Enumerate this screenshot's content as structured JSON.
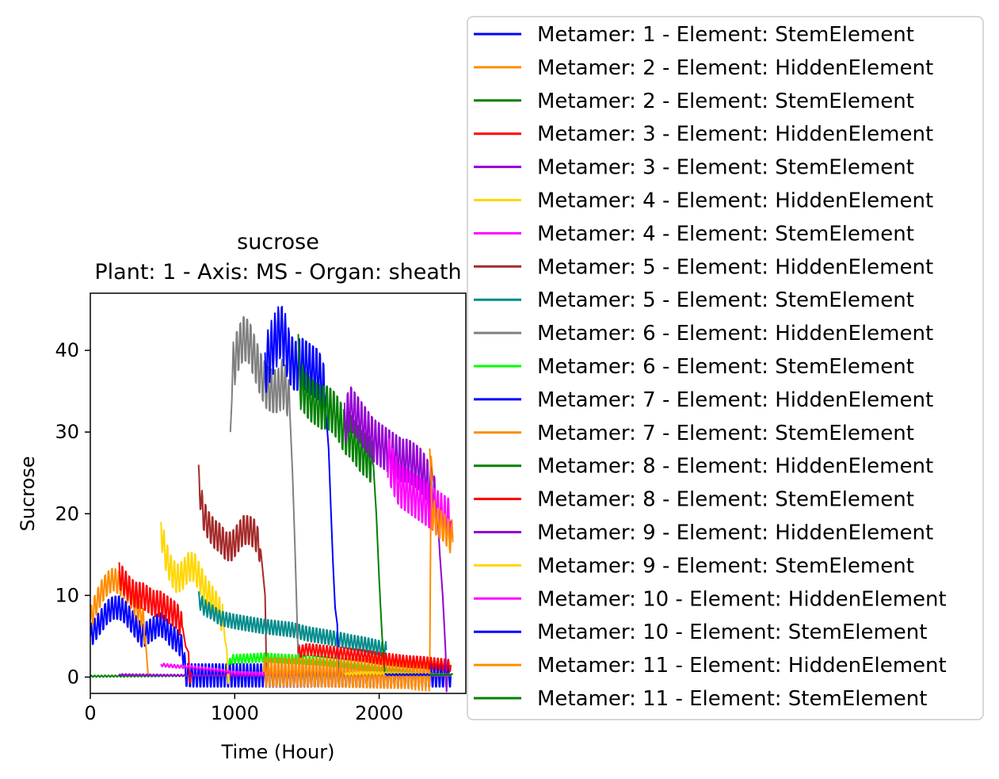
{
  "chart_data": {
    "type": "line",
    "title": "sucrose",
    "subtitle": "Plant: 1 - Axis: MS - Organ: sheath",
    "xlabel": "Time (Hour)",
    "ylabel": "Sucrose",
    "xlim": [
      0,
      2600
    ],
    "ylim": [
      -2,
      47
    ],
    "xticks": [
      0,
      1000,
      2000
    ],
    "yticks": [
      0,
      10,
      20,
      30,
      40
    ],
    "xtick_labels": [
      "0",
      "1000",
      "2000"
    ],
    "ytick_labels": [
      "0",
      "10",
      "20",
      "30",
      "40"
    ],
    "grid": false,
    "legend_position": "outside-right",
    "series": [
      {
        "name": "Metamer: 1 - Element: StemElement",
        "color": "#0000ff",
        "points": [
          [
            0,
            5
          ],
          [
            20,
            5.5
          ],
          [
            40,
            6
          ],
          [
            80,
            7
          ],
          [
            120,
            8
          ],
          [
            160,
            8.5
          ],
          [
            200,
            8.5
          ],
          [
            240,
            8
          ],
          [
            280,
            7
          ],
          [
            320,
            6
          ],
          [
            360,
            5
          ],
          [
            400,
            5.5
          ],
          [
            440,
            6
          ],
          [
            480,
            6.5
          ],
          [
            520,
            6
          ],
          [
            560,
            5
          ],
          [
            600,
            4.5
          ],
          [
            640,
            3.5
          ],
          [
            660,
            0.3
          ],
          [
            700,
            0.2
          ],
          [
            2500,
            0.2
          ]
        ],
        "amp": 1.6
      },
      {
        "name": "Metamer: 2 - Element: HiddenElement",
        "color": "#ff8c00",
        "points": [
          [
            0,
            7
          ],
          [
            40,
            9
          ],
          [
            80,
            10.5
          ],
          [
            120,
            11.5
          ],
          [
            160,
            12
          ],
          [
            200,
            11.5
          ],
          [
            240,
            11
          ],
          [
            280,
            10
          ],
          [
            320,
            8.5
          ],
          [
            360,
            7.5
          ],
          [
            380,
            5
          ],
          [
            400,
            0.3
          ]
        ],
        "amp": 1.6
      },
      {
        "name": "Metamer: 2 - Element: StemElement",
        "color": "#008000",
        "points": [
          [
            0,
            0.1
          ],
          [
            400,
            0.15
          ],
          [
            800,
            0.2
          ],
          [
            1200,
            0.2
          ],
          [
            1600,
            0.2
          ],
          [
            2000,
            0.2
          ],
          [
            2500,
            0.2
          ]
        ],
        "amp": 0.1
      },
      {
        "name": "Metamer: 3 - Element: HiddenElement",
        "color": "#ff0000",
        "points": [
          [
            200,
            12.5
          ],
          [
            240,
            11.5
          ],
          [
            280,
            10.5
          ],
          [
            320,
            10
          ],
          [
            360,
            10
          ],
          [
            400,
            9.5
          ],
          [
            440,
            9
          ],
          [
            480,
            9
          ],
          [
            520,
            8.5
          ],
          [
            560,
            8
          ],
          [
            600,
            7.5
          ],
          [
            640,
            6
          ],
          [
            680,
            1.5
          ],
          [
            700,
            0.3
          ]
        ],
        "amp": 1.8
      },
      {
        "name": "Metamer: 3 - Element: StemElement",
        "color": "#9400d3",
        "points": [
          [
            200,
            0.3
          ],
          [
            400,
            0.25
          ],
          [
            700,
            0.2
          ],
          [
            1000,
            0.2
          ],
          [
            1500,
            0.2
          ],
          [
            2000,
            0.2
          ],
          [
            2500,
            0.2
          ]
        ],
        "amp": 0.1
      },
      {
        "name": "Metamer: 4 - Element: HiddenElement",
        "color": "#ffd700",
        "points": [
          [
            490,
            18
          ],
          [
            520,
            15
          ],
          [
            560,
            13
          ],
          [
            600,
            12
          ],
          [
            640,
            12.5
          ],
          [
            680,
            13.5
          ],
          [
            720,
            13.5
          ],
          [
            760,
            12
          ],
          [
            800,
            10.5
          ],
          [
            840,
            9.5
          ],
          [
            880,
            8.5
          ],
          [
            920,
            7
          ],
          [
            945,
            2
          ],
          [
            960,
            0.5
          ]
        ],
        "amp": 2.0
      },
      {
        "name": "Metamer: 4 - Element: StemElement",
        "color": "#ff00ff",
        "points": [
          [
            490,
            1.5
          ],
          [
            600,
            1.3
          ],
          [
            700,
            1.2
          ],
          [
            800,
            1.0
          ],
          [
            900,
            0.8
          ],
          [
            1000,
            0.5
          ],
          [
            1200,
            0.4
          ],
          [
            1440,
            0.3
          ]
        ],
        "amp": 0.2
      },
      {
        "name": "Metamer: 5 - Element: HiddenElement",
        "color": "#a52a2a",
        "points": [
          [
            750,
            24
          ],
          [
            780,
            20
          ],
          [
            820,
            18.5
          ],
          [
            860,
            17.5
          ],
          [
            900,
            17
          ],
          [
            940,
            16
          ],
          [
            980,
            16
          ],
          [
            1020,
            17
          ],
          [
            1060,
            18
          ],
          [
            1100,
            18
          ],
          [
            1140,
            17.5
          ],
          [
            1180,
            15.5
          ],
          [
            1210,
            10
          ],
          [
            1220,
            1
          ],
          [
            1240,
            0.5
          ]
        ],
        "amp": 2.0
      },
      {
        "name": "Metamer: 5 - Element: StemElement",
        "color": "#008b8b",
        "points": [
          [
            750,
            9.5
          ],
          [
            790,
            8.5
          ],
          [
            840,
            8
          ],
          [
            900,
            7.2
          ],
          [
            1000,
            6.8
          ],
          [
            1100,
            6.5
          ],
          [
            1200,
            6.2
          ],
          [
            1300,
            6
          ],
          [
            1400,
            5.8
          ],
          [
            1500,
            5.3
          ],
          [
            1600,
            5
          ],
          [
            1700,
            4.7
          ],
          [
            1800,
            4.3
          ],
          [
            1900,
            4
          ],
          [
            2000,
            3.6
          ],
          [
            2050,
            3.3
          ]
        ],
        "amp": 1.0
      },
      {
        "name": "Metamer: 6 - Element: HiddenElement",
        "color": "#808080",
        "points": [
          [
            970,
            30
          ],
          [
            990,
            38
          ],
          [
            1020,
            40
          ],
          [
            1060,
            41.5
          ],
          [
            1100,
            41
          ],
          [
            1140,
            39
          ],
          [
            1180,
            37
          ],
          [
            1220,
            35.5
          ],
          [
            1260,
            35
          ],
          [
            1300,
            35
          ],
          [
            1330,
            36
          ],
          [
            1360,
            35
          ],
          [
            1380,
            33
          ],
          [
            1400,
            25
          ],
          [
            1420,
            14
          ],
          [
            1440,
            2
          ],
          [
            1450,
            0.5
          ]
        ],
        "amp": 3.0
      },
      {
        "name": "Metamer: 6 - Element: StemElement",
        "color": "#00ff00",
        "points": [
          [
            960,
            1.5
          ],
          [
            980,
            2.2
          ],
          [
            1100,
            2.3
          ],
          [
            1200,
            2.4
          ],
          [
            1300,
            2.3
          ],
          [
            1400,
            2.2
          ],
          [
            1500,
            2.1
          ],
          [
            1600,
            2
          ],
          [
            1700,
            1.8
          ],
          [
            1800,
            1.6
          ],
          [
            1900,
            1.4
          ],
          [
            2000,
            1.2
          ],
          [
            2100,
            1.0
          ],
          [
            2200,
            0.8
          ],
          [
            2250,
            0.6
          ]
        ],
        "amp": 0.6
      },
      {
        "name": "Metamer: 7 - Element: HiddenElement",
        "color": "#0000ff",
        "points": [
          [
            1210,
            38
          ],
          [
            1250,
            40
          ],
          [
            1290,
            41.5
          ],
          [
            1320,
            42.5
          ],
          [
            1350,
            41
          ],
          [
            1380,
            39
          ],
          [
            1420,
            38
          ],
          [
            1460,
            38.5
          ],
          [
            1500,
            38
          ],
          [
            1540,
            37.5
          ],
          [
            1580,
            37
          ],
          [
            1620,
            35
          ],
          [
            1650,
            28
          ],
          [
            1680,
            14
          ],
          [
            1710,
            3
          ],
          [
            1720,
            0.3
          ]
        ],
        "amp": 3.5
      },
      {
        "name": "Metamer: 7 - Element: StemElement",
        "color": "#ff8c00",
        "points": [
          [
            1200,
            0.6
          ],
          [
            1400,
            0.6
          ],
          [
            1600,
            0.55
          ],
          [
            1800,
            0.5
          ],
          [
            2000,
            0.4
          ],
          [
            2200,
            0.35
          ],
          [
            2350,
            0.3
          ],
          [
            2360,
            27
          ],
          [
            2380,
            22
          ],
          [
            2420,
            20
          ],
          [
            2460,
            19
          ],
          [
            2500,
            17.5
          ],
          [
            2510,
            17
          ]
        ],
        "amp": 2.0
      },
      {
        "name": "Metamer: 8 - Element: HiddenElement",
        "color": "#008000",
        "points": [
          [
            1440,
            42
          ],
          [
            1450,
            36
          ],
          [
            1480,
            35
          ],
          [
            1520,
            34
          ],
          [
            1560,
            33.5
          ],
          [
            1600,
            33
          ],
          [
            1640,
            33
          ],
          [
            1680,
            32.5
          ],
          [
            1720,
            31.5
          ],
          [
            1760,
            30
          ],
          [
            1800,
            29.5
          ],
          [
            1840,
            28.5
          ],
          [
            1880,
            27.5
          ],
          [
            1920,
            27
          ],
          [
            1960,
            26
          ],
          [
            1980,
            20
          ],
          [
            2000,
            12
          ],
          [
            2020,
            5
          ],
          [
            2040,
            0.3
          ]
        ],
        "amp": 3.0
      },
      {
        "name": "Metamer: 8 - Element: StemElement",
        "color": "#ff0000",
        "points": [
          [
            1440,
            3
          ],
          [
            1500,
            3.4
          ],
          [
            1600,
            3.2
          ],
          [
            1700,
            3
          ],
          [
            1800,
            2.8
          ],
          [
            1900,
            2.6
          ],
          [
            2000,
            2.3
          ],
          [
            2100,
            2.1
          ],
          [
            2200,
            1.9
          ],
          [
            2300,
            1.8
          ],
          [
            2400,
            1.6
          ],
          [
            2500,
            1.4
          ]
        ],
        "amp": 0.8
      },
      {
        "name": "Metamer: 9 - Element: HiddenElement",
        "color": "#9400d3",
        "points": [
          [
            1760,
            31
          ],
          [
            1800,
            33
          ],
          [
            1840,
            32
          ],
          [
            1880,
            31
          ],
          [
            1920,
            30
          ],
          [
            1960,
            29
          ],
          [
            2000,
            28.5
          ],
          [
            2040,
            28
          ],
          [
            2080,
            27.5
          ],
          [
            2120,
            27
          ],
          [
            2160,
            26.5
          ],
          [
            2200,
            26.5
          ],
          [
            2240,
            26
          ],
          [
            2280,
            25.5
          ],
          [
            2320,
            24.5
          ],
          [
            2360,
            23
          ],
          [
            2400,
            21
          ],
          [
            2420,
            15
          ],
          [
            2440,
            10
          ],
          [
            2460,
            3
          ],
          [
            2470,
            0.3
          ]
        ],
        "amp": 3.0
      },
      {
        "name": "Metamer: 9 - Element: StemElement",
        "color": "#ffd700",
        "points": [
          [
            1760,
            0.4
          ],
          [
            1900,
            0.5
          ],
          [
            2000,
            0.5
          ],
          [
            2100,
            0.45
          ],
          [
            2200,
            0.4
          ],
          [
            2300,
            0.35
          ],
          [
            2400,
            0.3
          ],
          [
            2500,
            0.3
          ]
        ],
        "amp": 0.15
      },
      {
        "name": "Metamer: 10 - Element: HiddenElement",
        "color": "#ff00ff",
        "points": [
          [
            2060,
            27
          ],
          [
            2100,
            25
          ],
          [
            2140,
            23.5
          ],
          [
            2180,
            23
          ],
          [
            2220,
            22.5
          ],
          [
            2260,
            22
          ],
          [
            2300,
            21.5
          ],
          [
            2340,
            21
          ],
          [
            2380,
            20.5
          ],
          [
            2420,
            20
          ],
          [
            2460,
            19.5
          ],
          [
            2500,
            19
          ]
        ],
        "amp": 3.0
      },
      {
        "name": "Metamer: 10 - Element: StemElement",
        "color": "#0000ff",
        "points": [
          [
            2040,
            0.3
          ],
          [
            2200,
            0.3
          ],
          [
            2350,
            0.3
          ],
          [
            2500,
            0.3
          ]
        ],
        "amp": 0.1
      },
      {
        "name": "Metamer: 11 - Element: HiddenElement",
        "color": "#ff8c00",
        "points": [
          [
            2350,
            28
          ],
          [
            2370,
            20
          ],
          [
            2400,
            19
          ],
          [
            2440,
            18.5
          ],
          [
            2480,
            17.5
          ],
          [
            2510,
            16.5
          ]
        ],
        "amp": 2.0
      },
      {
        "name": "Metamer: 11 - Element: StemElement",
        "color": "#008000",
        "points": [
          [
            2350,
            0.3
          ],
          [
            2430,
            0.3
          ],
          [
            2510,
            0.3
          ]
        ],
        "amp": 0.1
      }
    ]
  }
}
